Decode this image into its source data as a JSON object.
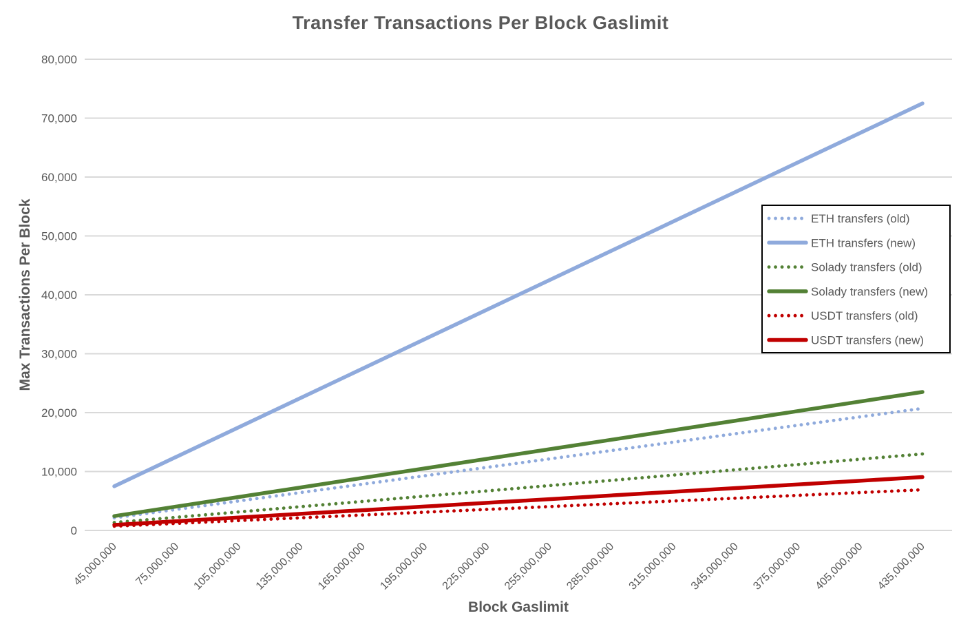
{
  "colors": {
    "background": "#ffffff",
    "text": "#595959",
    "grid": "#d9d9d9",
    "legend_border": "#000000",
    "eth_blue": "#8faadc",
    "solady_green": "#538135",
    "usdt_red": "#c00000"
  },
  "chart_data": {
    "type": "line",
    "title": "Transfer Transactions Per Block Gaslimit",
    "xlabel": "Block Gaslimit",
    "ylabel": "Max Transactions Per Block",
    "ylim": [
      0,
      80000
    ],
    "ytick_step": 10000,
    "y_tick_labels": [
      "0",
      "10,000",
      "20,000",
      "30,000",
      "40,000",
      "50,000",
      "60,000",
      "70,000",
      "80,000"
    ],
    "grid": "horizontal",
    "legend_position": "middle-right-boxed",
    "x": [
      45000000,
      75000000,
      105000000,
      135000000,
      165000000,
      195000000,
      225000000,
      255000000,
      285000000,
      315000000,
      345000000,
      375000000,
      405000000,
      435000000
    ],
    "x_tick_labels": [
      "45,000,000",
      "75,000,000",
      "105,000,000",
      "135,000,000",
      "165,000,000",
      "195,000,000",
      "225,000,000",
      "255,000,000",
      "285,000,000",
      "315,000,000",
      "345,000,000",
      "375,000,000",
      "405,000,000",
      "435,000,000"
    ],
    "series": [
      {
        "name": "ETH transfers (old)",
        "style": "dotted",
        "color": "#8faadc",
        "values": [
          2143,
          3571,
          5000,
          6429,
          7857,
          9286,
          10714,
          12143,
          13571,
          15000,
          16429,
          17857,
          19286,
          20714
        ]
      },
      {
        "name": "ETH transfers (new)",
        "style": "solid",
        "color": "#8faadc",
        "values": [
          7500,
          12500,
          17500,
          22500,
          27500,
          32500,
          37500,
          42500,
          47500,
          52500,
          57500,
          62500,
          67500,
          72500
        ]
      },
      {
        "name": "Solady transfers (old)",
        "style": "dotted",
        "color": "#538135",
        "values": [
          1343,
          2239,
          3134,
          4030,
          4925,
          5821,
          6716,
          7612,
          8507,
          9403,
          10299,
          11194,
          12090,
          12985
        ]
      },
      {
        "name": "Solady transfers (new)",
        "style": "solid",
        "color": "#538135",
        "values": [
          2432,
          4054,
          5676,
          7297,
          8919,
          10541,
          12162,
          13784,
          15405,
          17027,
          18649,
          20270,
          21892,
          23514
        ]
      },
      {
        "name": "USDT transfers (old)",
        "style": "dotted",
        "color": "#c00000",
        "values": [
          714,
          1190,
          1667,
          2143,
          2619,
          3095,
          3571,
          4048,
          4524,
          5000,
          5476,
          5952,
          6429,
          6905
        ]
      },
      {
        "name": "USDT transfers (new)",
        "style": "solid",
        "color": "#c00000",
        "values": [
          938,
          1563,
          2188,
          2813,
          3438,
          4063,
          4688,
          5313,
          5938,
          6563,
          7188,
          7813,
          8438,
          9063
        ]
      }
    ]
  }
}
